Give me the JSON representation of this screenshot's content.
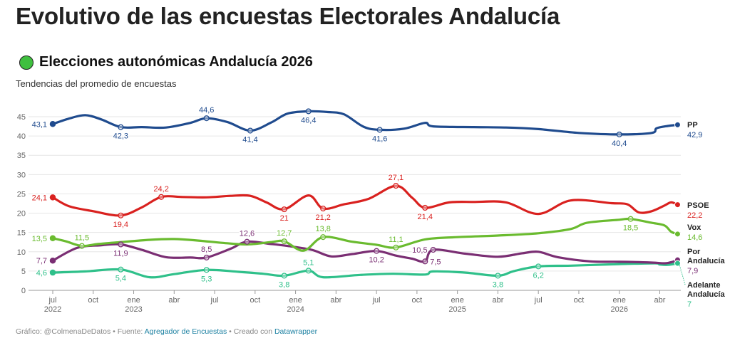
{
  "title": "Evolutivo de las encuestas Electorales Andalucía",
  "subtitle": "Elecciones autonómicas Andalucía 2026",
  "description": "Tendencias del promedio de encuestas",
  "footer": {
    "prefix": "Gráfico: @ColmenaDeDatos • Fuente: ",
    "source": "Agregador de Encuestas",
    "middle": " • Creado con ",
    "tool": "Datawrapper"
  },
  "colors": {
    "PP": "#1f4b8e",
    "PSOE": "#d9211f",
    "Vox": "#6abb2f",
    "Por Andalucía": "#7a2e73",
    "Adelante Andalucía": "#2fc08a",
    "grid": "#e6e6e6",
    "axis_text": "#666666"
  },
  "chart_data": {
    "type": "line",
    "xlim": [
      2022.5,
      2026.38
    ],
    "ylim": [
      0,
      45
    ],
    "grid": true,
    "y_ticks": [
      0,
      5,
      10,
      15,
      20,
      25,
      30,
      35,
      40,
      45
    ],
    "x_ticks": [
      {
        "x": 2022.5,
        "label": "jul",
        "year": "2022"
      },
      {
        "x": 2022.75,
        "label": "oct",
        "year": ""
      },
      {
        "x": 2023.0,
        "label": "ene",
        "year": "2023"
      },
      {
        "x": 2023.25,
        "label": "abr",
        "year": ""
      },
      {
        "x": 2023.5,
        "label": "jul",
        "year": ""
      },
      {
        "x": 2023.75,
        "label": "oct",
        "year": ""
      },
      {
        "x": 2024.0,
        "label": "ene",
        "year": "2024"
      },
      {
        "x": 2024.25,
        "label": "abr",
        "year": ""
      },
      {
        "x": 2024.5,
        "label": "jul",
        "year": ""
      },
      {
        "x": 2024.75,
        "label": "oct",
        "year": ""
      },
      {
        "x": 2025.0,
        "label": "ene",
        "year": "2025"
      },
      {
        "x": 2025.25,
        "label": "abr",
        "year": ""
      },
      {
        "x": 2025.5,
        "label": "jul",
        "year": ""
      },
      {
        "x": 2025.75,
        "label": "oct",
        "year": ""
      },
      {
        "x": 2026.0,
        "label": "ene",
        "year": "2026"
      },
      {
        "x": 2026.25,
        "label": "abr",
        "year": ""
      }
    ],
    "series": [
      {
        "name": "PP",
        "end_label": "PP",
        "end_value": "42,9",
        "points": [
          [
            2022.5,
            43.1
          ],
          [
            2022.6,
            44.5
          ],
          [
            2022.7,
            45.4
          ],
          [
            2022.8,
            44.3
          ],
          [
            2022.92,
            42.3
          ],
          [
            2023.05,
            42.3
          ],
          [
            2023.2,
            42.2
          ],
          [
            2023.35,
            43.4
          ],
          [
            2023.45,
            44.6
          ],
          [
            2023.58,
            43.6
          ],
          [
            2023.72,
            41.4
          ],
          [
            2023.85,
            43.5
          ],
          [
            2023.95,
            45.8
          ],
          [
            2024.08,
            46.4
          ],
          [
            2024.2,
            46.2
          ],
          [
            2024.3,
            45.6
          ],
          [
            2024.42,
            42.4
          ],
          [
            2024.52,
            41.6
          ],
          [
            2024.67,
            41.9
          ],
          [
            2024.8,
            43.4
          ],
          [
            2024.85,
            42.5
          ],
          [
            2025.1,
            42.3
          ],
          [
            2025.3,
            42.2
          ],
          [
            2025.5,
            41.8
          ],
          [
            2025.75,
            40.8
          ],
          [
            2026.0,
            40.4
          ],
          [
            2026.2,
            40.8
          ],
          [
            2026.23,
            42.0
          ],
          [
            2026.3,
            42.6
          ],
          [
            2026.36,
            42.9
          ]
        ],
        "markers": [
          {
            "x": 2022.5,
            "y": 43.1,
            "label": "43,1",
            "pos": "left"
          },
          {
            "x": 2022.92,
            "y": 42.3,
            "label": "42,3",
            "pos": "below"
          },
          {
            "x": 2023.45,
            "y": 44.6,
            "label": "44,6",
            "pos": "above"
          },
          {
            "x": 2023.72,
            "y": 41.4,
            "label": "41,4",
            "pos": "below"
          },
          {
            "x": 2024.08,
            "y": 46.4,
            "label": "46,4",
            "pos": "below"
          },
          {
            "x": 2024.52,
            "y": 41.6,
            "label": "41,6",
            "pos": "below"
          },
          {
            "x": 2026.0,
            "y": 40.4,
            "label": "40,4",
            "pos": "below"
          }
        ]
      },
      {
        "name": "PSOE",
        "end_label": "PSOE",
        "end_value": "22,2",
        "points": [
          [
            2022.5,
            24.1
          ],
          [
            2022.6,
            21.8
          ],
          [
            2022.75,
            20.5
          ],
          [
            2022.92,
            19.4
          ],
          [
            2023.05,
            21.5
          ],
          [
            2023.17,
            24.2
          ],
          [
            2023.3,
            24.2
          ],
          [
            2023.45,
            24.1
          ],
          [
            2023.6,
            24.5
          ],
          [
            2023.72,
            24.5
          ],
          [
            2023.82,
            22.8
          ],
          [
            2023.93,
            21.0
          ],
          [
            2024.08,
            24.6
          ],
          [
            2024.17,
            21.2
          ],
          [
            2024.3,
            22.3
          ],
          [
            2024.45,
            23.7
          ],
          [
            2024.62,
            27.1
          ],
          [
            2024.72,
            24.0
          ],
          [
            2024.8,
            21.4
          ],
          [
            2024.95,
            22.8
          ],
          [
            2025.1,
            22.9
          ],
          [
            2025.3,
            22.8
          ],
          [
            2025.5,
            19.8
          ],
          [
            2025.7,
            23.3
          ],
          [
            2025.95,
            22.6
          ],
          [
            2026.05,
            22.3
          ],
          [
            2026.12,
            20.2
          ],
          [
            2026.2,
            20.5
          ],
          [
            2026.28,
            22.0
          ],
          [
            2026.32,
            22.8
          ],
          [
            2026.36,
            22.2
          ]
        ],
        "markers": [
          {
            "x": 2022.5,
            "y": 24.1,
            "label": "24,1",
            "pos": "left"
          },
          {
            "x": 2022.92,
            "y": 19.4,
            "label": "19,4",
            "pos": "below"
          },
          {
            "x": 2023.17,
            "y": 24.2,
            "label": "24,2",
            "pos": "above"
          },
          {
            "x": 2023.93,
            "y": 21.0,
            "label": "21",
            "pos": "below"
          },
          {
            "x": 2024.17,
            "y": 21.2,
            "label": "21,2",
            "pos": "below"
          },
          {
            "x": 2024.62,
            "y": 27.1,
            "label": "27,1",
            "pos": "above"
          },
          {
            "x": 2024.8,
            "y": 21.4,
            "label": "21,4",
            "pos": "below"
          }
        ]
      },
      {
        "name": "Vox",
        "end_label": "Vox",
        "end_value": "14,6",
        "points": [
          [
            2022.5,
            13.5
          ],
          [
            2022.58,
            12.7
          ],
          [
            2022.68,
            11.5
          ],
          [
            2022.78,
            12.0
          ],
          [
            2022.92,
            12.5
          ],
          [
            2023.1,
            13.1
          ],
          [
            2023.25,
            13.3
          ],
          [
            2023.4,
            12.9
          ],
          [
            2023.55,
            12.3
          ],
          [
            2023.7,
            11.9
          ],
          [
            2023.85,
            12.5
          ],
          [
            2023.93,
            12.7
          ],
          [
            2024.05,
            10.3
          ],
          [
            2024.17,
            13.8
          ],
          [
            2024.35,
            12.6
          ],
          [
            2024.5,
            11.8
          ],
          [
            2024.62,
            11.1
          ],
          [
            2024.8,
            13.2
          ],
          [
            2025.0,
            13.8
          ],
          [
            2025.25,
            14.2
          ],
          [
            2025.5,
            14.8
          ],
          [
            2025.7,
            15.9
          ],
          [
            2025.8,
            17.5
          ],
          [
            2026.0,
            18.3
          ],
          [
            2026.07,
            18.5
          ],
          [
            2026.2,
            17.5
          ],
          [
            2026.28,
            16.8
          ],
          [
            2026.32,
            15.2
          ],
          [
            2026.36,
            14.6
          ]
        ],
        "markers": [
          {
            "x": 2022.5,
            "y": 13.5,
            "label": "13,5",
            "pos": "left"
          },
          {
            "x": 2022.68,
            "y": 11.5,
            "label": "11,5",
            "pos": "above"
          },
          {
            "x": 2023.93,
            "y": 12.7,
            "label": "12,7",
            "pos": "above"
          },
          {
            "x": 2024.17,
            "y": 13.8,
            "label": "13,8",
            "pos": "above"
          },
          {
            "x": 2024.62,
            "y": 11.1,
            "label": "11,1",
            "pos": "above"
          },
          {
            "x": 2026.07,
            "y": 18.5,
            "label": "18,5",
            "pos": "below"
          }
        ]
      },
      {
        "name": "Por Andalucía",
        "end_label": "Por Andalucía",
        "end_value": "7,9",
        "points": [
          [
            2022.5,
            7.7
          ],
          [
            2022.65,
            11.0
          ],
          [
            2022.8,
            11.7
          ],
          [
            2022.92,
            11.9
          ],
          [
            2023.05,
            10.5
          ],
          [
            2023.2,
            8.6
          ],
          [
            2023.35,
            8.5
          ],
          [
            2023.45,
            8.5
          ],
          [
            2023.6,
            10.8
          ],
          [
            2023.7,
            12.6
          ],
          [
            2023.85,
            12.0
          ],
          [
            2023.95,
            11.5
          ],
          [
            2024.1,
            10.5
          ],
          [
            2024.22,
            8.8
          ],
          [
            2024.35,
            9.4
          ],
          [
            2024.5,
            10.2
          ],
          [
            2024.62,
            9.0
          ],
          [
            2024.72,
            8.2
          ],
          [
            2024.8,
            7.5
          ],
          [
            2024.85,
            10.5
          ],
          [
            2025.05,
            9.5
          ],
          [
            2025.25,
            8.7
          ],
          [
            2025.4,
            9.6
          ],
          [
            2025.5,
            10.0
          ],
          [
            2025.62,
            8.6
          ],
          [
            2025.82,
            7.5
          ],
          [
            2026.0,
            7.4
          ],
          [
            2026.2,
            7.2
          ],
          [
            2026.28,
            7.0
          ],
          [
            2026.33,
            7.4
          ],
          [
            2026.36,
            7.9
          ]
        ],
        "markers": [
          {
            "x": 2022.5,
            "y": 7.7,
            "label": "7,7",
            "pos": "left"
          },
          {
            "x": 2022.92,
            "y": 11.9,
            "label": "11,9",
            "pos": "below"
          },
          {
            "x": 2023.45,
            "y": 8.5,
            "label": "8,5",
            "pos": "above"
          },
          {
            "x": 2023.7,
            "y": 12.6,
            "label": "12,6",
            "pos": "above"
          },
          {
            "x": 2024.5,
            "y": 10.2,
            "label": "10,2",
            "pos": "below"
          },
          {
            "x": 2024.8,
            "y": 7.5,
            "label": "7,5",
            "pos": "right"
          },
          {
            "x": 2024.85,
            "y": 10.5,
            "label": "10,5",
            "pos": "left"
          }
        ]
      },
      {
        "name": "Adelante Andalucía",
        "end_label": "Adelante Andalucía",
        "end_value": "7",
        "points": [
          [
            2022.5,
            4.6
          ],
          [
            2022.7,
            4.9
          ],
          [
            2022.92,
            5.4
          ],
          [
            2023.1,
            3.4
          ],
          [
            2023.25,
            4.2
          ],
          [
            2023.45,
            5.3
          ],
          [
            2023.65,
            4.8
          ],
          [
            2023.8,
            4.3
          ],
          [
            2023.93,
            3.8
          ],
          [
            2024.08,
            5.1
          ],
          [
            2024.17,
            3.4
          ],
          [
            2024.4,
            4.0
          ],
          [
            2024.6,
            4.3
          ],
          [
            2024.8,
            4.1
          ],
          [
            2024.85,
            4.9
          ],
          [
            2025.05,
            4.6
          ],
          [
            2025.25,
            3.8
          ],
          [
            2025.35,
            5.0
          ],
          [
            2025.5,
            6.2
          ],
          [
            2025.7,
            6.4
          ],
          [
            2026.0,
            6.8
          ],
          [
            2026.22,
            7.0
          ],
          [
            2026.25,
            6.7
          ],
          [
            2026.3,
            6.6
          ],
          [
            2026.36,
            7.0
          ]
        ],
        "markers": [
          {
            "x": 2022.5,
            "y": 4.6,
            "label": "4,6",
            "pos": "left"
          },
          {
            "x": 2022.92,
            "y": 5.4,
            "label": "5,4",
            "pos": "below"
          },
          {
            "x": 2023.45,
            "y": 5.3,
            "label": "5,3",
            "pos": "below"
          },
          {
            "x": 2023.93,
            "y": 3.8,
            "label": "3,8",
            "pos": "below"
          },
          {
            "x": 2024.08,
            "y": 5.1,
            "label": "5,1",
            "pos": "above"
          },
          {
            "x": 2025.25,
            "y": 3.8,
            "label": "3,8",
            "pos": "below"
          },
          {
            "x": 2025.5,
            "y": 6.2,
            "label": "6,2",
            "pos": "below"
          }
        ]
      }
    ]
  }
}
